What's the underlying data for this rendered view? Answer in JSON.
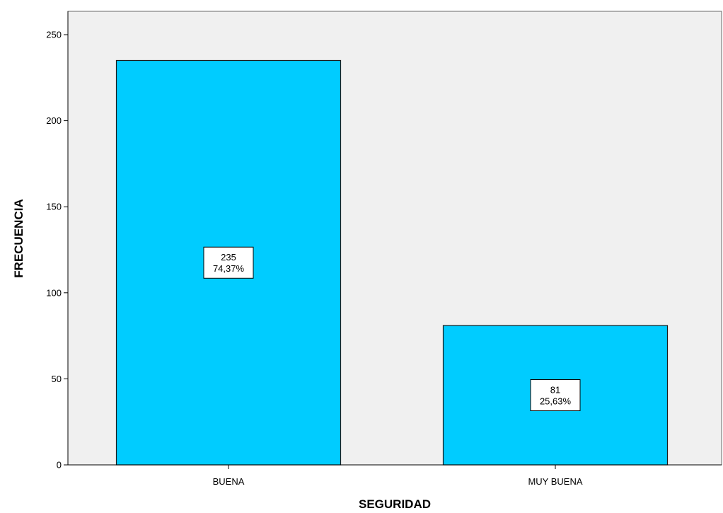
{
  "chart_data": {
    "type": "bar",
    "categories": [
      "BUENA",
      "MUY BUENA"
    ],
    "values": [
      235,
      81
    ],
    "data_labels": [
      {
        "count": "235",
        "percent": "74,37%"
      },
      {
        "count": "81",
        "percent": "25,63%"
      }
    ],
    "title": "",
    "xlabel": "SEGURIDAD",
    "ylabel": "FRECUENCIA",
    "ylim": [
      0,
      260
    ],
    "yticks": [
      0,
      50,
      100,
      150,
      200,
      250
    ],
    "grid": false,
    "colors": {
      "bar_fill": "#00CCFF",
      "bar_stroke": "#1a1a1a",
      "plot_background": "#F0F0F0",
      "label_box_fill": "#FFFFFF"
    }
  }
}
